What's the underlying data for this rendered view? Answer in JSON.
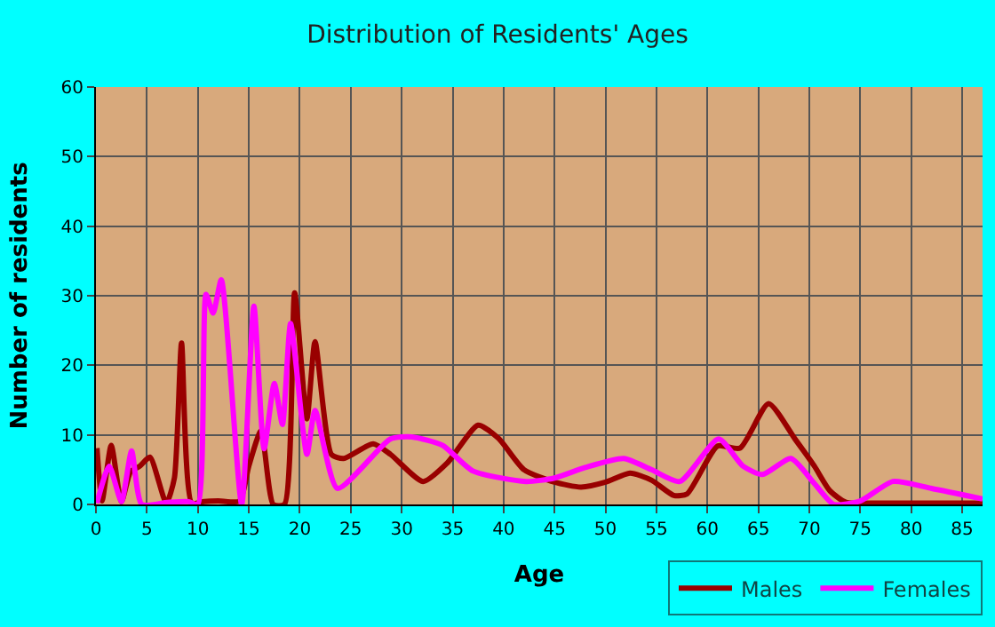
{
  "chart_data": {
    "type": "line",
    "title": "Distribution of Residents' Ages",
    "xlabel": "Age",
    "ylabel": "Number of residents",
    "xlim": [
      0,
      87
    ],
    "xticks": [
      0,
      5,
      10,
      15,
      20,
      25,
      30,
      35,
      40,
      45,
      50,
      55,
      60,
      65,
      70,
      75,
      80,
      85
    ],
    "ylim": [
      0,
      60
    ],
    "yticks": [
      0,
      10,
      20,
      30,
      40,
      50,
      60
    ],
    "grid": true,
    "legend": "bottom right",
    "marker": "none",
    "line_style": "solid",
    "series": [
      {
        "name": "Males",
        "color": "#990000",
        "x": [
          0.1,
          0.6,
          1.5,
          2.5,
          3.4,
          4.3,
          5.3,
          6.9,
          7.7,
          8.4,
          9.4,
          10.6,
          12,
          14.1,
          15.0,
          16.2,
          17.4,
          18.5,
          19.5,
          20.7,
          21.5,
          23.1,
          24.3,
          27.2,
          28.9,
          32.1,
          34.5,
          37.5,
          39.5,
          42,
          45,
          47.6,
          50,
          52.4,
          54.5,
          56.7,
          58,
          61,
          63.2,
          66,
          68.6,
          70.5,
          72,
          73.6,
          77,
          87
        ],
        "values": [
          8.1,
          0.5,
          8.5,
          0.4,
          4.7,
          5.5,
          6.8,
          0.2,
          3.8,
          23.2,
          0.2,
          0.4,
          0.5,
          0.5,
          5.5,
          10.6,
          0,
          0,
          30.4,
          12.3,
          23.4,
          7.2,
          6.6,
          8.7,
          7.2,
          3.3,
          6,
          11.4,
          9.5,
          5,
          3.2,
          2.5,
          3.2,
          4.5,
          3.5,
          1.3,
          1.5,
          8.4,
          8.1,
          14.5,
          9.4,
          5.5,
          2,
          0.3,
          0.2,
          0.2
        ]
      },
      {
        "name": "Females",
        "color": "#ff00ff",
        "x": [
          0.1,
          1.3,
          2.5,
          3.5,
          4.5,
          7,
          9.1,
          10,
          10.8,
          11.5,
          12.3,
          14.3,
          15.5,
          16.5,
          17.5,
          18.3,
          19.1,
          20.7,
          21.5,
          23.7,
          28.9,
          31,
          34,
          37,
          42.2,
          45,
          48,
          51.8,
          54.5,
          57.3,
          61.1,
          63.5,
          65.4,
          68.2,
          70.5,
          72.4,
          75,
          78.2,
          82,
          87
        ],
        "values": [
          0.2,
          5.5,
          0.4,
          7.7,
          0,
          0.3,
          0.4,
          0,
          30.2,
          27.5,
          32.3,
          0,
          28.5,
          8,
          17.4,
          11.5,
          26,
          7.2,
          13.5,
          2.3,
          9.4,
          9.7,
          8.5,
          4.8,
          3.3,
          3.8,
          5.3,
          6.6,
          5,
          3.3,
          9.4,
          5.5,
          4.3,
          6.6,
          3,
          0,
          0.5,
          3.3,
          2.3,
          0.8
        ]
      }
    ]
  }
}
